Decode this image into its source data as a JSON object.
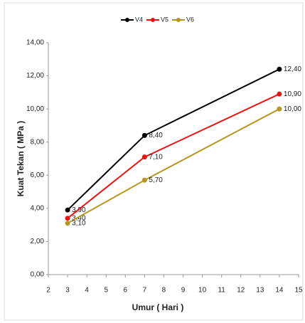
{
  "chart_data": {
    "type": "line",
    "x_label": "Umur ( Hari )",
    "y_label": "Kuat Tekan ( MPa )",
    "x": [
      3,
      7,
      14
    ],
    "series": [
      {
        "name": "V4",
        "color": "#000000",
        "values": [
          3.9,
          8.4,
          12.4
        ],
        "value_labels": [
          "3,90",
          "8,40",
          "12,40"
        ]
      },
      {
        "name": "V5",
        "color": "#ee1111",
        "values": [
          3.4,
          7.1,
          10.9
        ],
        "value_labels": [
          "3,40",
          "7,10",
          "10,90"
        ]
      },
      {
        "name": "V6",
        "color": "#b8961e",
        "values": [
          3.1,
          5.7,
          10.0
        ],
        "value_labels": [
          "3,10",
          "5,70",
          "10,00"
        ]
      }
    ],
    "xlim": [
      2,
      15
    ],
    "xticks": [
      2,
      3,
      4,
      5,
      6,
      7,
      8,
      9,
      10,
      11,
      12,
      13,
      14,
      15
    ],
    "ylim": [
      0,
      14
    ],
    "yticks": [
      {
        "value": 0,
        "label": "0,00"
      },
      {
        "value": 2,
        "label": "2,00"
      },
      {
        "value": 4,
        "label": "4,00"
      },
      {
        "value": 6,
        "label": "6,00"
      },
      {
        "value": 8,
        "label": "8,00"
      },
      {
        "value": 10,
        "label": "10,00"
      },
      {
        "value": 12,
        "label": "12,00"
      },
      {
        "value": 14,
        "label": "14,00"
      }
    ],
    "grid": false,
    "legend": "top"
  }
}
